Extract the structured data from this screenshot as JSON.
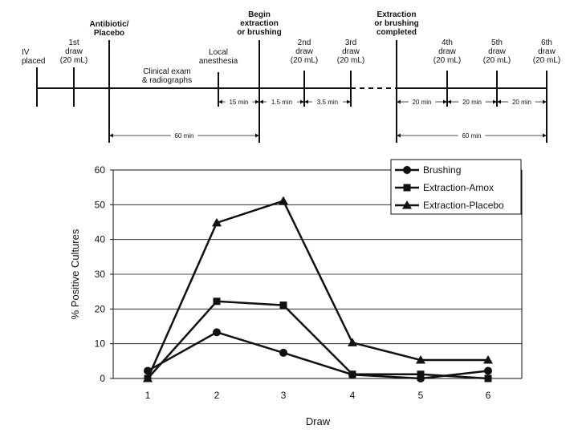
{
  "timeline": {
    "events": [
      {
        "lines": [
          "IV",
          "placed"
        ],
        "bold": false
      },
      {
        "lines": [
          "1st",
          "draw",
          "(20 mL)"
        ],
        "bold": false
      },
      {
        "lines": [
          "Antibiotic/",
          "Placebo"
        ],
        "bold": true
      },
      {
        "lines": [
          "Clinical exam",
          "& radiographs"
        ],
        "bold": false
      },
      {
        "lines": [
          "Local",
          "anesthesia"
        ],
        "bold": false
      },
      {
        "lines": [
          "Begin",
          "extraction",
          "or brushing"
        ],
        "bold": true
      },
      {
        "lines": [
          "2nd",
          "draw",
          "(20 mL)"
        ],
        "bold": false
      },
      {
        "lines": [
          "3rd",
          "draw",
          "(20 mL)"
        ],
        "bold": false
      },
      {
        "lines": [
          "Extraction",
          "or brushing",
          "completed"
        ],
        "bold": true
      },
      {
        "lines": [
          "4th",
          "draw",
          "(20 mL)"
        ],
        "bold": false
      },
      {
        "lines": [
          "5th",
          "draw",
          "(20 mL)"
        ],
        "bold": false
      },
      {
        "lines": [
          "6th",
          "draw",
          "(20 mL)"
        ],
        "bold": false
      }
    ],
    "intervals": [
      "15 min",
      "1.5 min",
      "3.5 min",
      "20 min",
      "20 min",
      "20 min"
    ],
    "spans": [
      "60 min",
      "60 min"
    ]
  },
  "chart_data": {
    "type": "line",
    "title": "",
    "xlabel": "Draw",
    "ylabel": "% Positive Cultures",
    "categories": [
      1,
      2,
      3,
      4,
      5,
      6
    ],
    "ylim": [
      0,
      60
    ],
    "yticks": [
      0,
      10,
      20,
      30,
      40,
      50,
      60
    ],
    "grid": true,
    "legend_position": "top-right",
    "series": [
      {
        "name": "Brushing",
        "marker": "circle",
        "values": [
          2.2,
          13.3,
          7.4,
          1.1,
          0,
          2.2
        ]
      },
      {
        "name": "Extraction-Amox",
        "marker": "square",
        "values": [
          0,
          22.2,
          21.1,
          1.2,
          1.2,
          0
        ]
      },
      {
        "name": "Extraction-Placebo",
        "marker": "triangle",
        "values": [
          0,
          44.8,
          51.1,
          10.3,
          5.3,
          5.3
        ]
      }
    ]
  }
}
